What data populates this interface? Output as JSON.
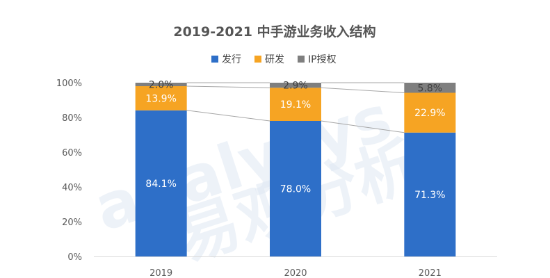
{
  "chart_data": {
    "type": "bar",
    "stacked": true,
    "title": "2019-2021 中手游业务收入结构",
    "categories": [
      "2019",
      "2020",
      "2021"
    ],
    "series": [
      {
        "name": "发行",
        "values": [
          84.1,
          78.0,
          71.3
        ],
        "labels": [
          "84.1%",
          "78.0%",
          "71.3%"
        ],
        "color": "#2e6fc8"
      },
      {
        "name": "研发",
        "values": [
          13.9,
          19.1,
          22.9
        ],
        "labels": [
          "13.9%",
          "19.1%",
          "22.9%"
        ],
        "color": "#f6a423"
      },
      {
        "name": "IP授权",
        "values": [
          2.0,
          2.9,
          5.8
        ],
        "labels": [
          "2.0%",
          "2.9%",
          "5.8%"
        ],
        "color": "#7f7f7f"
      }
    ],
    "yticks": [
      "0%",
      "20%",
      "40%",
      "60%",
      "80%",
      "100%"
    ],
    "ylim": [
      0,
      100
    ],
    "legend_position": "top",
    "grid": false
  },
  "watermark": {
    "text_latin": "analysys",
    "text_cjk": "易观分析",
    "color": "#dfe8f3"
  }
}
